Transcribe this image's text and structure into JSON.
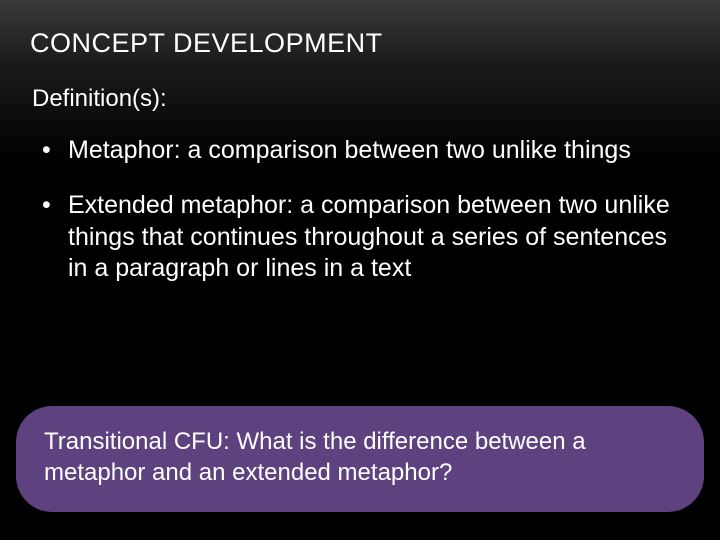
{
  "slide": {
    "background_gradient": [
      "#3a3a3a",
      "#000000"
    ],
    "title": "CONCEPT DEVELOPMENT",
    "subtitle": "Definition(s):",
    "bullets": [
      "Metaphor: a comparison between two unlike things",
      "Extended metaphor: a comparison between two unlike things that continues throughout a series of sentences in a paragraph or lines in a text"
    ],
    "callout": {
      "background_color": "#5e427f",
      "text": "Transitional CFU: What is the difference between a metaphor and an extended metaphor?"
    },
    "text_color": "#ffffff",
    "title_fontsize": 27,
    "subtitle_fontsize": 24,
    "body_fontsize": 25,
    "callout_fontsize": 24
  }
}
